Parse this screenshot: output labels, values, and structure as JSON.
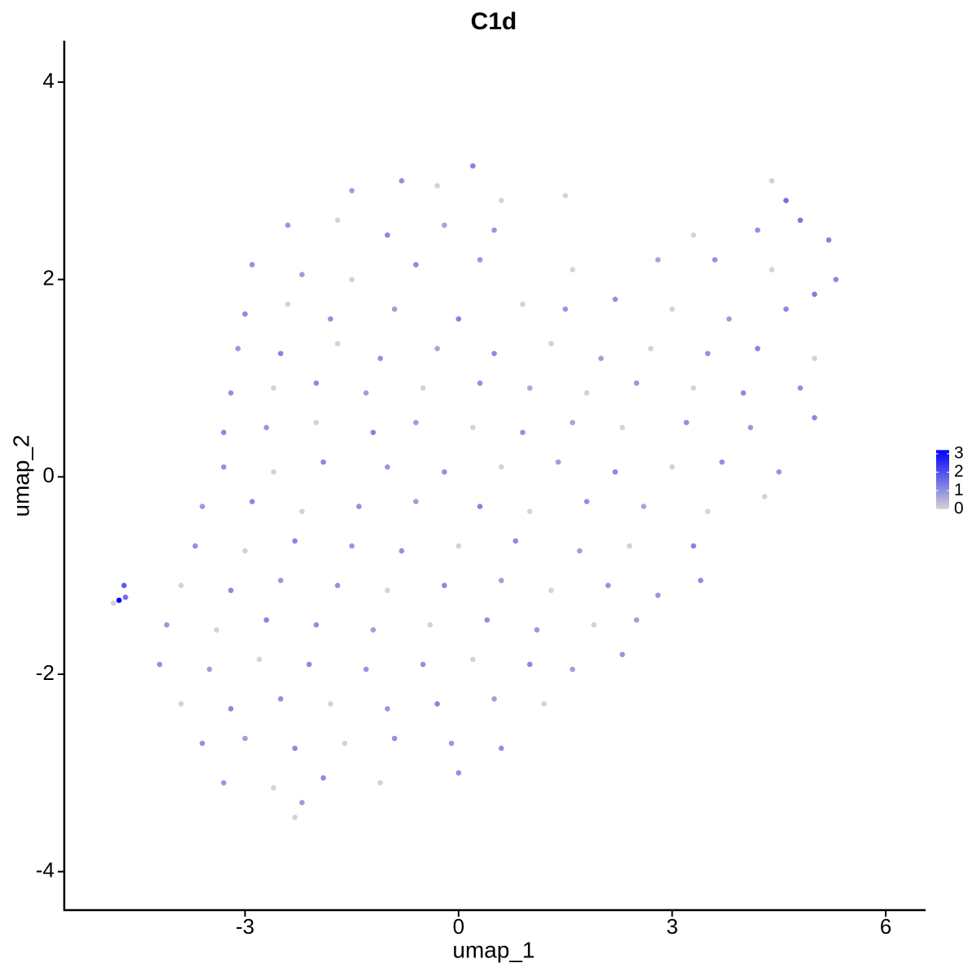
{
  "chart_data": {
    "type": "scatter",
    "title": "C1d",
    "x_label": "umap_1",
    "y_label": "umap_2",
    "xlim": [
      -5.54,
      6.56
    ],
    "xticks": [
      -3,
      0,
      3,
      6
    ],
    "ylim": [
      -4.39,
      4.42
    ],
    "yticks": [
      -4,
      -2,
      0,
      2,
      4
    ],
    "color_scale": {
      "low": "#d3d3d3",
      "high": "#0000ff",
      "limits": [
        0,
        3.2
      ],
      "ticks": [
        0,
        1,
        2,
        3
      ]
    },
    "x": [
      -1.5,
      -0.8,
      0.2,
      -0.3,
      0.6,
      1.5,
      4.4,
      4.6,
      -2.4,
      -1.7,
      -1.0,
      -0.2,
      0.5,
      4.2,
      4.8,
      5.2,
      3.3,
      -2.9,
      -2.2,
      -1.5,
      -0.6,
      0.3,
      1.6,
      2.8,
      3.6,
      4.4,
      5.3,
      -3.0,
      -2.4,
      -1.8,
      -0.9,
      0,
      0.9,
      1.5,
      2.2,
      3.0,
      3.8,
      4.6,
      5.0,
      -3.1,
      -2.5,
      -1.7,
      -1.1,
      -0.3,
      0.5,
      1.3,
      2.0,
      2.7,
      3.5,
      4.2,
      5.0,
      -3.2,
      -2.6,
      -2.0,
      -1.3,
      -0.5,
      0.3,
      1.0,
      1.8,
      2.5,
      3.3,
      4.0,
      4.8,
      -3.3,
      -2.7,
      -2.0,
      -1.2,
      -0.6,
      0.2,
      0.9,
      1.6,
      2.3,
      3.2,
      4.1,
      5.0,
      -3.3,
      -2.6,
      -1.9,
      -1.0,
      -0.2,
      0.6,
      1.4,
      2.2,
      3.0,
      3.7,
      4.5,
      -3.6,
      -2.9,
      -2.2,
      -1.4,
      -0.6,
      0.3,
      1.0,
      1.8,
      2.6,
      3.5,
      4.3,
      -3.7,
      -3.0,
      -2.3,
      -1.5,
      -0.8,
      0,
      0.8,
      1.7,
      2.4,
      3.3,
      -3.9,
      -3.2,
      -2.5,
      -1.7,
      -1.0,
      -0.2,
      0.6,
      1.3,
      2.1,
      2.8,
      3.4,
      -4.1,
      -3.4,
      -2.7,
      -2.0,
      -1.2,
      -0.4,
      0.4,
      1.1,
      1.9,
      2.5,
      -4.2,
      -3.5,
      -2.8,
      -2.1,
      -1.3,
      -0.5,
      0.2,
      1.0,
      1.6,
      2.3,
      -3.9,
      -3.2,
      -2.5,
      -1.8,
      -1.0,
      -0.3,
      0.5,
      1.2,
      -3.6,
      -3.0,
      -2.3,
      -1.6,
      -0.9,
      -0.1,
      0.6,
      -3.3,
      -2.6,
      -1.9,
      -1.1,
      0,
      -2.3,
      -2.2,
      -4.85,
      -4.7,
      -4.68,
      -4.77
    ],
    "y": [
      2.9,
      3.0,
      3.15,
      2.95,
      2.8,
      2.85,
      3.0,
      2.8,
      2.55,
      2.6,
      2.45,
      2.55,
      2.5,
      2.5,
      2.6,
      2.4,
      2.45,
      2.15,
      2.05,
      2.0,
      2.15,
      2.2,
      2.1,
      2.2,
      2.2,
      2.1,
      2.0,
      1.65,
      1.75,
      1.6,
      1.7,
      1.6,
      1.75,
      1.7,
      1.8,
      1.7,
      1.6,
      1.7,
      1.85,
      1.3,
      1.25,
      1.35,
      1.2,
      1.3,
      1.25,
      1.35,
      1.2,
      1.3,
      1.25,
      1.3,
      1.2,
      0.85,
      0.9,
      0.95,
      0.85,
      0.9,
      0.95,
      0.9,
      0.85,
      0.95,
      0.9,
      0.85,
      0.9,
      0.45,
      0.5,
      0.55,
      0.45,
      0.55,
      0.5,
      0.45,
      0.55,
      0.5,
      0.55,
      0.5,
      0.6,
      0.1,
      0.05,
      0.15,
      0.1,
      0.05,
      0.1,
      0.15,
      0.05,
      0.1,
      0.15,
      0.05,
      -0.3,
      -0.25,
      -0.35,
      -0.3,
      -0.25,
      -0.3,
      -0.35,
      -0.25,
      -0.3,
      -0.35,
      -0.2,
      -0.7,
      -0.75,
      -0.65,
      -0.7,
      -0.75,
      -0.7,
      -0.65,
      -0.75,
      -0.7,
      -0.7,
      -1.1,
      -1.15,
      -1.05,
      -1.1,
      -1.15,
      -1.1,
      -1.05,
      -1.15,
      -1.1,
      -1.2,
      -1.05,
      -1.5,
      -1.55,
      -1.45,
      -1.5,
      -1.55,
      -1.5,
      -1.45,
      -1.55,
      -1.5,
      -1.45,
      -1.9,
      -1.95,
      -1.85,
      -1.9,
      -1.95,
      -1.9,
      -1.85,
      -1.9,
      -1.95,
      -1.8,
      -2.3,
      -2.35,
      -2.25,
      -2.3,
      -2.35,
      -2.3,
      -2.25,
      -2.3,
      -2.7,
      -2.65,
      -2.75,
      -2.7,
      -2.65,
      -2.7,
      -2.75,
      -3.1,
      -3.15,
      -3.05,
      -3.1,
      -3.0,
      -3.45,
      -3.3,
      -1.28,
      -1.1,
      -1.22,
      -1.25
    ],
    "values": [
      0.8,
      1.0,
      1.2,
      0,
      0,
      0,
      0,
      1.5,
      0.9,
      0,
      1.1,
      0.7,
      0.9,
      1.0,
      1.4,
      1.2,
      0,
      1.0,
      0.8,
      0,
      1.1,
      0.9,
      0,
      0.7,
      1.0,
      0,
      1.1,
      1.1,
      0,
      1.0,
      0.8,
      1.2,
      0,
      0.9,
      1.0,
      0,
      0.8,
      1.1,
      1.3,
      0.9,
      1.2,
      0,
      1.0,
      0.7,
      1.1,
      0,
      0.8,
      0,
      1.0,
      1.2,
      0,
      1.0,
      0,
      1.1,
      0.8,
      0,
      1.0,
      0.6,
      0,
      0.9,
      0,
      1.1,
      1.0,
      1.1,
      0.9,
      0,
      1.2,
      0.8,
      0,
      1.0,
      0.7,
      0,
      1.0,
      0.9,
      1.1,
      1.0,
      0,
      1.1,
      0.9,
      1.0,
      0,
      0.8,
      1.1,
      0,
      1.0,
      0.9,
      0.9,
      1.1,
      0,
      1.0,
      0.8,
      1.2,
      0,
      1.0,
      0.7,
      0,
      0,
      1.0,
      0,
      1.2,
      0.9,
      1.0,
      0,
      1.1,
      0.8,
      0,
      1.2,
      0,
      1.1,
      0.9,
      1.0,
      0,
      1.1,
      0.8,
      0,
      1.0,
      0.9,
      1.1,
      0.9,
      0,
      1.2,
      1.0,
      0.8,
      0,
      1.0,
      0.9,
      0,
      0.8,
      1.0,
      0.8,
      0,
      1.1,
      0.9,
      1.0,
      0,
      1.1,
      0.8,
      0.9,
      0,
      1.1,
      1.0,
      0,
      0.9,
      1.2,
      0.8,
      0,
      1.0,
      0.8,
      1.1,
      0,
      1.0,
      0.9,
      1.0,
      0.9,
      0,
      1.1,
      0,
      1.0,
      0,
      0.8,
      0,
      1.8,
      1.5,
      3.2
    ]
  }
}
